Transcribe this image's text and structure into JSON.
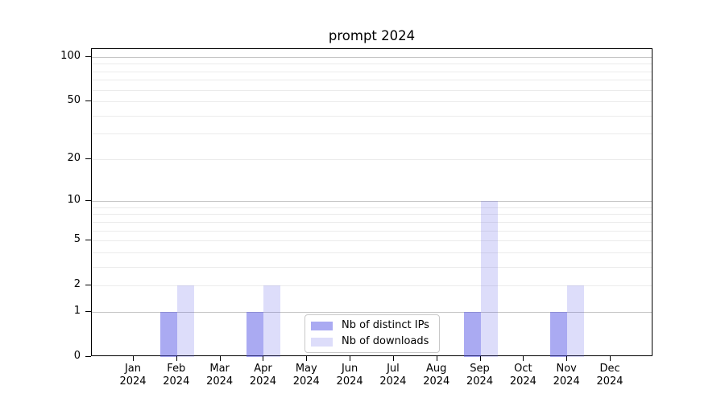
{
  "colors": {
    "bar_dark": "rgba(85,85,230,0.5)",
    "bar_light": "rgba(85,85,230,0.2)",
    "grid_major": "#c6c6c6",
    "grid_minor": "#ebebeb",
    "spine": "#000000",
    "legend_border": "#c8c8c8",
    "text": "#000000"
  },
  "legend": {
    "items": [
      {
        "label": "Nb of distinct IPs",
        "color_key": "bar_dark"
      },
      {
        "label": "Nb of downloads",
        "color_key": "bar_light"
      }
    ]
  },
  "chart_data": {
    "type": "bar",
    "title": "prompt 2024",
    "categories": [
      "Jan",
      "Feb",
      "Mar",
      "Apr",
      "May",
      "Jun",
      "Jul",
      "Aug",
      "Sep",
      "Oct",
      "Nov",
      "Dec"
    ],
    "year": "2024",
    "series": [
      {
        "name": "Nb of distinct IPs",
        "color_key": "bar_dark",
        "values": [
          0,
          1,
          0,
          1,
          0,
          0,
          0,
          0,
          1,
          0,
          1,
          0
        ]
      },
      {
        "name": "Nb of downloads",
        "color_key": "bar_light",
        "values": [
          0,
          2,
          0,
          2,
          0,
          0,
          0,
          0,
          10,
          0,
          2,
          0
        ]
      }
    ],
    "y_axis": {
      "scale": "log1p",
      "ticks": [
        {
          "label": "0",
          "value": 0
        },
        {
          "label": "1",
          "value": 1
        },
        {
          "label": "2",
          "value": 2
        },
        {
          "label": "5",
          "value": 5
        },
        {
          "label": "10",
          "value": 10
        },
        {
          "label": "20",
          "value": 20
        },
        {
          "label": "50",
          "value": 50
        },
        {
          "label": "100",
          "value": 100
        }
      ],
      "major_grid": [
        1,
        10,
        100
      ],
      "minor_grid": [
        2,
        3,
        4,
        5,
        6,
        7,
        8,
        9,
        20,
        30,
        40,
        50,
        60,
        70,
        80,
        90
      ],
      "ylim": [
        0,
        115
      ]
    },
    "x_axis": {
      "tick_label_lines": [
        "month",
        "year"
      ]
    },
    "legend_position": "lower center",
    "grid": "both"
  }
}
